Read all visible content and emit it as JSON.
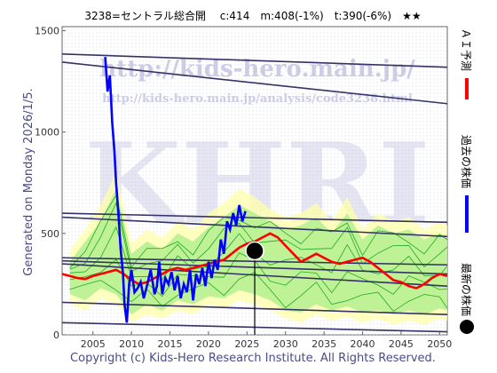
{
  "chart_data": {
    "type": "line",
    "title": "3238=セントラル総合開　 c:414　m:408(-1%)　t:390(-6%)　★★",
    "generated_note": "Generated on Monday 2026/1/5.",
    "copyright": "Copyright (c) Kids-Hero Research Institute. All Rights Reserved.",
    "watermark_url": "http://kids-hero.main.jp/",
    "watermark_url2": "http://kids-hero.main.jp/analysis/code3238.html",
    "watermark_big": "KHRI",
    "xlim": [
      2001,
      2051
    ],
    "ylim": [
      0,
      1520
    ],
    "x_ticks": [
      2005,
      2010,
      2015,
      2020,
      2025,
      2030,
      2035,
      2040,
      2045,
      2050
    ],
    "y_ticks": [
      0,
      500,
      1000,
      1500
    ],
    "legend": [
      {
        "label": "ＡＩ予測",
        "color": "#ff0000"
      },
      {
        "label": "過去の株価",
        "color": "#0000ff"
      },
      {
        "label": "最新の株価",
        "color": "#000000"
      }
    ],
    "colors": {
      "ai": "#ff0000",
      "past": "#0000ff",
      "band_outer": "#ffffaa",
      "band_inner": "#aaee88",
      "band_line": "#22aa22",
      "trend": "#333366"
    },
    "latest": {
      "x": 2026.0,
      "y": 414
    },
    "series": [
      {
        "name": "過去の株価",
        "x": [
          2006.6,
          2006.9,
          2007.2,
          2007.5,
          2007.8,
          2008.0,
          2008.3,
          2008.6,
          2008.9,
          2009.1,
          2009.4,
          2009.7,
          2010.0,
          2010.4,
          2010.8,
          2011.2,
          2011.6,
          2012.0,
          2012.5,
          2013.0,
          2013.3,
          2013.6,
          2014.0,
          2014.4,
          2014.8,
          2015.2,
          2015.6,
          2016.0,
          2016.4,
          2016.8,
          2017.2,
          2017.6,
          2018.0,
          2018.4,
          2018.8,
          2019.2,
          2019.6,
          2020.0,
          2020.4,
          2020.8,
          2021.2,
          2021.6,
          2022.0,
          2022.4,
          2022.8,
          2023.2,
          2023.6,
          2024.0,
          2024.4,
          2024.8
        ],
        "y": [
          1370,
          1200,
          1280,
          1050,
          900,
          750,
          600,
          420,
          300,
          150,
          60,
          250,
          320,
          210,
          230,
          260,
          180,
          240,
          320,
          200,
          240,
          360,
          200,
          280,
          250,
          310,
          220,
          290,
          180,
          250,
          210,
          320,
          170,
          300,
          250,
          330,
          240,
          360,
          280,
          370,
          320,
          470,
          400,
          560,
          520,
          600,
          540,
          640,
          560,
          610
        ]
      },
      {
        "name": "ＡＩ予測",
        "x": [
          2001,
          2002,
          2003,
          2004,
          2005,
          2006,
          2007,
          2008,
          2009,
          2010,
          2011,
          2012,
          2013,
          2014,
          2015,
          2016,
          2017,
          2018,
          2019,
          2020,
          2021,
          2022,
          2023,
          2024,
          2025,
          2026,
          2027,
          2028,
          2029,
          2030,
          2031,
          2032,
          2033,
          2034,
          2035,
          2036,
          2037,
          2038,
          2039,
          2040,
          2041,
          2042,
          2043,
          2044,
          2045,
          2046,
          2047,
          2048,
          2049,
          2050,
          2051
        ],
        "y": [
          300,
          290,
          280,
          275,
          290,
          300,
          310,
          320,
          300,
          270,
          250,
          260,
          280,
          300,
          320,
          330,
          320,
          330,
          340,
          350,
          360,
          370,
          400,
          430,
          450,
          460,
          480,
          500,
          480,
          440,
          400,
          360,
          380,
          400,
          380,
          360,
          350,
          360,
          370,
          380,
          360,
          330,
          300,
          270,
          260,
          240,
          230,
          250,
          280,
          300,
          290
        ]
      }
    ],
    "trend_lines": [
      {
        "from": [
          2001,
          1385
        ],
        "to": [
          2051,
          1320
        ]
      },
      {
        "from": [
          2001,
          1345
        ],
        "to": [
          2051,
          1140
        ]
      },
      {
        "from": [
          2001,
          600
        ],
        "to": [
          2051,
          555
        ]
      },
      {
        "from": [
          2001,
          580
        ],
        "to": [
          2051,
          485
        ]
      },
      {
        "from": [
          2001,
          380
        ],
        "to": [
          2051,
          345
        ]
      },
      {
        "from": [
          2001,
          365
        ],
        "to": [
          2051,
          300
        ]
      },
      {
        "from": [
          2001,
          350
        ],
        "to": [
          2051,
          240
        ]
      },
      {
        "from": [
          2001,
          160
        ],
        "to": [
          2051,
          100
        ]
      },
      {
        "from": [
          2001,
          60
        ],
        "to": [
          2051,
          15
        ]
      }
    ],
    "band_outer": {
      "x": [
        2002,
        2004,
        2006,
        2008,
        2010,
        2012,
        2014,
        2016,
        2018,
        2020,
        2022,
        2024,
        2026,
        2028,
        2030,
        2032,
        2034,
        2036,
        2038,
        2040,
        2042,
        2044,
        2046,
        2048,
        2050,
        2051
      ],
      "upper": [
        420,
        520,
        640,
        800,
        450,
        520,
        480,
        560,
        520,
        600,
        650,
        720,
        680,
        620,
        580,
        600,
        650,
        560,
        680,
        520,
        600,
        560,
        580,
        520,
        560,
        540
      ],
      "lower": [
        150,
        120,
        180,
        150,
        60,
        100,
        80,
        120,
        100,
        150,
        130,
        170,
        150,
        120,
        80,
        60,
        100,
        70,
        90,
        60,
        80,
        50,
        70,
        50,
        80,
        70
      ]
    },
    "band_inner": {
      "x": [
        2002,
        2004,
        2006,
        2008,
        2010,
        2012,
        2014,
        2016,
        2018,
        2020,
        2022,
        2024,
        2026,
        2028,
        2030,
        2032,
        2034,
        2036,
        2038,
        2040,
        2042,
        2044,
        2046,
        2048,
        2050,
        2051
      ],
      "upper": [
        360,
        460,
        560,
        720,
        400,
        460,
        420,
        500,
        460,
        530,
        580,
        640,
        600,
        560,
        520,
        540,
        580,
        500,
        600,
        470,
        540,
        500,
        520,
        470,
        500,
        480
      ],
      "lower": [
        200,
        170,
        230,
        200,
        100,
        150,
        120,
        170,
        150,
        190,
        180,
        220,
        200,
        170,
        120,
        110,
        150,
        120,
        140,
        110,
        120,
        100,
        120,
        100,
        130,
        120
      ]
    }
  }
}
